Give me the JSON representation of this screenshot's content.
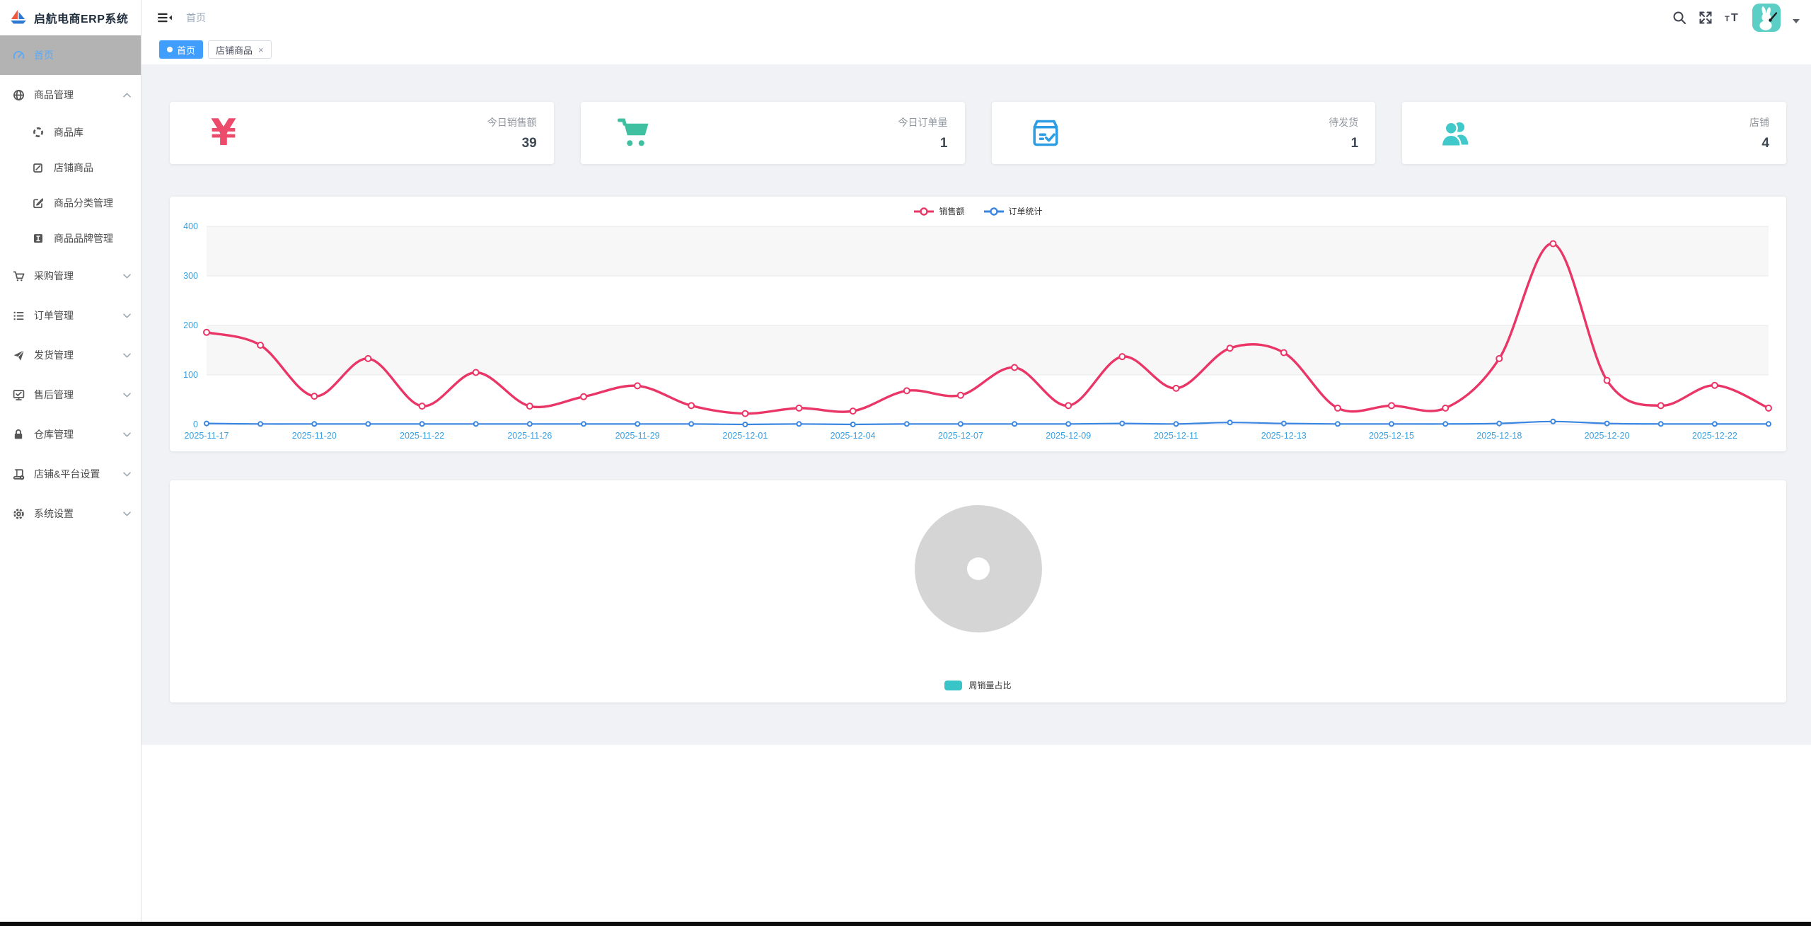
{
  "app": {
    "title": "启航电商ERP系统"
  },
  "sidebar": {
    "items": [
      {
        "id": "home",
        "label": "首页",
        "icon": "dashboard-icon",
        "level": "top",
        "active": true,
        "chevron": null
      },
      {
        "id": "product-management",
        "label": "商品管理",
        "icon": "globe-icon",
        "level": "top",
        "active": false,
        "chevron": "up"
      },
      {
        "id": "product-library",
        "label": "商品库",
        "icon": "compass-icon",
        "level": "sub",
        "active": false,
        "chevron": null
      },
      {
        "id": "store-products",
        "label": "店铺商品",
        "icon": "pen-doc-icon",
        "level": "sub",
        "active": false,
        "chevron": null
      },
      {
        "id": "product-category-management",
        "label": "商品分类管理",
        "icon": "edit-square-icon",
        "level": "sub",
        "active": false,
        "chevron": null
      },
      {
        "id": "product-brand-management",
        "label": "商品品牌管理",
        "icon": "brand-badge-icon",
        "level": "sub",
        "active": false,
        "chevron": null
      },
      {
        "id": "purchase-management",
        "label": "采购管理",
        "icon": "cart-icon",
        "level": "top",
        "active": false,
        "chevron": "down"
      },
      {
        "id": "order-management",
        "label": "订单管理",
        "icon": "list-icon",
        "level": "top",
        "active": false,
        "chevron": "down"
      },
      {
        "id": "shipping-management",
        "label": "发货管理",
        "icon": "paper-plane-icon",
        "level": "top",
        "active": false,
        "chevron": "down"
      },
      {
        "id": "aftersale-management",
        "label": "售后管理",
        "icon": "monitor-check-icon",
        "level": "top",
        "active": false,
        "chevron": "down"
      },
      {
        "id": "warehouse-management",
        "label": "仓库管理",
        "icon": "lock-icon",
        "level": "top",
        "active": false,
        "chevron": "down"
      },
      {
        "id": "shop-platform-settings",
        "label": "店铺&平台设置",
        "icon": "book-gear-icon",
        "level": "top",
        "active": false,
        "chevron": "down"
      },
      {
        "id": "system-settings",
        "label": "系统设置",
        "icon": "gear-icon",
        "level": "top",
        "active": false,
        "chevron": "down"
      }
    ]
  },
  "topbar": {
    "breadcrumb": "首页"
  },
  "tabs": [
    {
      "id": "home",
      "label": "首页",
      "active": true,
      "closable": false
    },
    {
      "id": "store-products",
      "label": "店铺商品",
      "active": false,
      "closable": true
    }
  ],
  "stats": [
    {
      "id": "today-sales",
      "label": "今日销售额",
      "value": "39",
      "icon": "yen-icon",
      "color": "#ec4b6c"
    },
    {
      "id": "today-orders",
      "label": "今日订单量",
      "value": "1",
      "icon": "cart-big-icon",
      "color": "#3fc0a0"
    },
    {
      "id": "to-ship",
      "label": "待发货",
      "value": "1",
      "icon": "package-check-icon",
      "color": "#2f9de4"
    },
    {
      "id": "shops",
      "label": "店铺",
      "value": "4",
      "icon": "users-icon",
      "color": "#41c8ca"
    }
  ],
  "chart_data": [
    {
      "type": "line",
      "title": "",
      "legend": [
        "销售额",
        "订单统计"
      ],
      "legend_position": "top-center",
      "categories_labeled": [
        "2025-11-17",
        "2025-11-20",
        "2025-11-22",
        "2025-11-26",
        "2025-11-29",
        "2025-12-01",
        "2025-12-04",
        "2025-12-07",
        "2025-12-09",
        "2025-12-11",
        "2025-12-13",
        "2025-12-15",
        "2025-12-18",
        "2025-12-20",
        "2025-12-22"
      ],
      "label_every_n_points": 2,
      "series": [
        {
          "name": "销售额",
          "color": "#ea3567",
          "values": [
            186,
            160,
            57,
            133,
            37,
            105,
            37,
            56,
            78,
            38,
            22,
            33,
            27,
            68,
            59,
            115,
            38,
            137,
            73,
            154,
            145,
            33,
            38,
            33,
            133,
            365,
            89,
            38,
            79,
            33
          ]
        },
        {
          "name": "订单统计",
          "color": "#3a86e0",
          "values": [
            2,
            1,
            1,
            1,
            1,
            1,
            1,
            1,
            1,
            1,
            0,
            1,
            0,
            1,
            1,
            1,
            1,
            2,
            1,
            4,
            2,
            1,
            1,
            1,
            2,
            6,
            2,
            1,
            1,
            1
          ]
        }
      ],
      "xlabel": "",
      "ylabel": "",
      "ylim": [
        0,
        400
      ],
      "yticks": [
        0,
        100,
        200,
        300,
        400
      ],
      "grid": "horizontal gridlines with alternating split-area bands",
      "axis_label_color": "#38a0e0",
      "gridline_color": "#e9e9e9",
      "band_color": "#f7f7f7"
    },
    {
      "type": "pie",
      "title": "",
      "legend": [
        "周销量占比"
      ],
      "legend_position": "bottom-center",
      "series": [
        {
          "name": "周销量占比",
          "values": []
        }
      ],
      "empty": true,
      "placeholder_color": "#d5d5d5",
      "hole_color": "#ffffff",
      "legend_swatch_color": "#39c5c8"
    }
  ]
}
